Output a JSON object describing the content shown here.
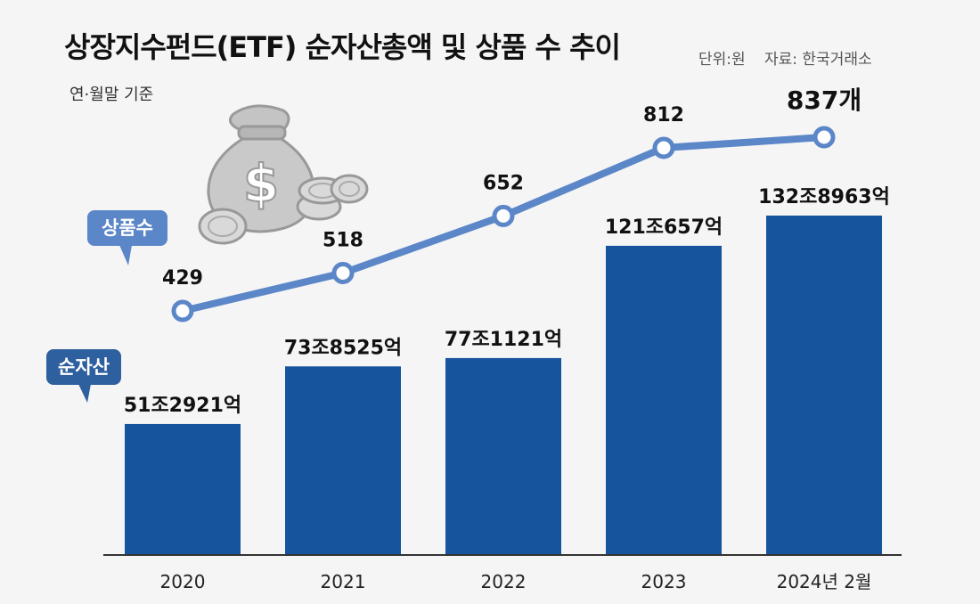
{
  "title": "상장지수펀드(ETF) 순자산총액 및 상품 수 추이",
  "unit_note": "단위:원",
  "source_note": "자료: 한국거래소",
  "basis_note": "연·월말 기준",
  "colors": {
    "bar": "#17549e",
    "line": "#5b86c8",
    "badge_count": "#5b86c8",
    "badge_assets": "#2e5f9e",
    "background": "#f5f5f5"
  },
  "badges": {
    "count_label": "상품수",
    "assets_label": "순자산"
  },
  "icons": [
    "money-bag-icon",
    "coin-icon"
  ],
  "chart_data": {
    "type": "bar+line",
    "categories": [
      "2020",
      "2021",
      "2022",
      "2023",
      "2024년 2월"
    ],
    "series": [
      {
        "name": "순자산",
        "type": "bar",
        "values": [
          512921,
          738525,
          771121,
          1210657,
          1328963
        ],
        "unit": "억원",
        "labels": [
          "51조2921억",
          "73조8525억",
          "77조1121억",
          "121조657억",
          "132조8963억"
        ]
      },
      {
        "name": "상품수",
        "type": "line",
        "values": [
          429,
          518,
          652,
          812,
          837
        ],
        "labels": [
          "429",
          "518",
          "652",
          "812",
          "837개"
        ]
      }
    ]
  }
}
